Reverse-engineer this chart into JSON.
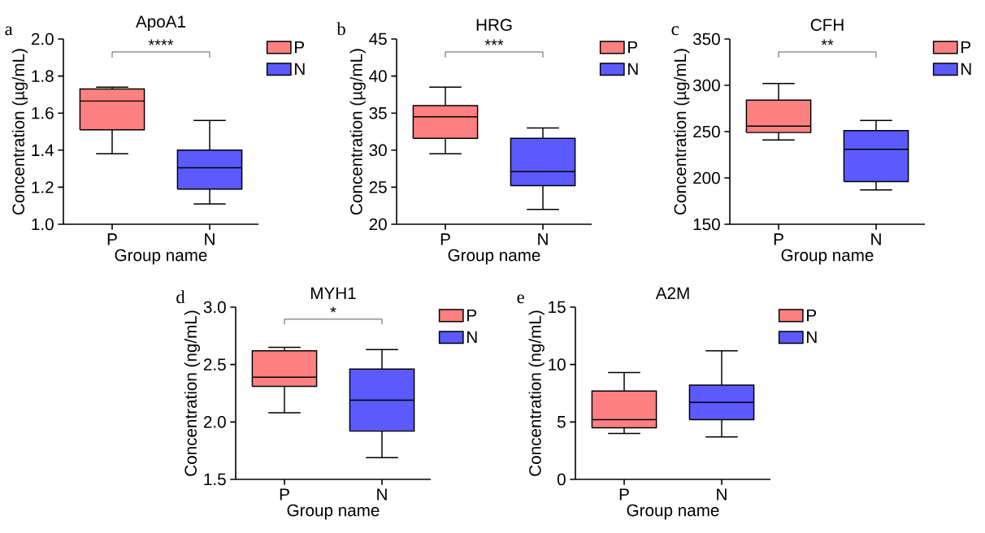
{
  "chart_data": [
    {
      "type": "box",
      "title": "ApoA1",
      "xlabel": "Group name",
      "ylabel": "Concentration (µg/mL)",
      "categories": [
        "P",
        "N"
      ],
      "ylim": [
        1.0,
        2.0
      ],
      "yticks": [
        {
          "value": 1,
          "label": "1.0"
        },
        1.2,
        1.4,
        1.6,
        1.8,
        {
          "value": 2,
          "label": "2.0"
        }
      ],
      "legend": "right",
      "annotations": [
        "a",
        "****"
      ],
      "series": [
        {
          "name": "P",
          "color": "#ff8080",
          "boxes": [
            {
              "low": 1.38,
              "q1": 1.51,
              "median": 1.665,
              "q3": 1.73,
              "high": 1.74
            },
            null
          ]
        },
        {
          "name": "N",
          "color": "#5a5aff",
          "boxes": [
            null,
            {
              "low": 1.11,
              "q1": 1.19,
              "median": 1.305,
              "q3": 1.4,
              "high": 1.56
            }
          ]
        }
      ]
    },
    {
      "type": "box",
      "title": "HRG",
      "xlabel": "Group name",
      "ylabel": "Concentration (µg/mL)",
      "categories": [
        "P",
        "N"
      ],
      "ylim": [
        20,
        45
      ],
      "yticks": [
        20,
        25,
        30,
        35,
        40,
        45
      ],
      "legend": "right",
      "annotations": [
        "b",
        "***"
      ],
      "series": [
        {
          "name": "P",
          "color": "#ff8080",
          "boxes": [
            {
              "low": 29.5,
              "q1": 31.6,
              "median": 34.5,
              "q3": 36,
              "high": 38.5
            },
            null
          ]
        },
        {
          "name": "N",
          "color": "#5a5aff",
          "boxes": [
            null,
            {
              "low": 22,
              "q1": 25.2,
              "median": 27.1,
              "q3": 31.6,
              "high": 33
            }
          ]
        }
      ]
    },
    {
      "type": "box",
      "title": "CFH",
      "xlabel": "Group name",
      "ylabel": "Concentration (µg/mL)",
      "categories": [
        "P",
        "N"
      ],
      "ylim": [
        150,
        350
      ],
      "yticks": [
        150,
        200,
        250,
        300,
        350
      ],
      "legend": "right",
      "annotations": [
        "c",
        "**"
      ],
      "series": [
        {
          "name": "P",
          "color": "#ff8080",
          "boxes": [
            {
              "low": 241,
              "q1": 249,
              "median": 256,
              "q3": 284,
              "high": 302
            },
            null
          ]
        },
        {
          "name": "N",
          "color": "#5a5aff",
          "boxes": [
            null,
            {
              "low": 187,
              "q1": 196,
              "median": 231,
              "q3": 251,
              "high": 262
            }
          ]
        }
      ]
    },
    {
      "type": "box",
      "title": "MYH1",
      "xlabel": "Group name",
      "ylabel": "Concentration (ng/mL)",
      "categories": [
        "P",
        "N"
      ],
      "ylim": [
        1.5,
        3.0
      ],
      "yticks": [
        1.5,
        {
          "value": 2,
          "label": "2.0"
        },
        2.5,
        {
          "value": 3,
          "label": "3.0"
        }
      ],
      "legend": "right",
      "annotations": [
        "d",
        "*"
      ],
      "series": [
        {
          "name": "P",
          "color": "#ff8080",
          "boxes": [
            {
              "low": 2.08,
              "q1": 2.31,
              "median": 2.39,
              "q3": 2.62,
              "high": 2.65
            },
            null
          ]
        },
        {
          "name": "N",
          "color": "#5a5aff",
          "boxes": [
            null,
            {
              "low": 1.69,
              "q1": 1.92,
              "median": 2.19,
              "q3": 2.46,
              "high": 2.63
            }
          ]
        }
      ]
    },
    {
      "type": "box",
      "title": "A2M",
      "xlabel": "Group name",
      "ylabel": "Concentration (ng/mL)",
      "categories": [
        "P",
        "N"
      ],
      "ylim": [
        0,
        15
      ],
      "yticks": [
        0,
        5,
        10,
        15
      ],
      "legend": "right",
      "annotations": [
        "e"
      ],
      "series": [
        {
          "name": "P",
          "color": "#ff8080",
          "boxes": [
            {
              "low": 4.0,
              "q1": 4.5,
              "median": 5.2,
              "q3": 7.7,
              "high": 9.3
            },
            null
          ]
        },
        {
          "name": "N",
          "color": "#5a5aff",
          "boxes": [
            null,
            {
              "low": 3.7,
              "q1": 5.2,
              "median": 6.7,
              "q3": 8.2,
              "high": 11.2
            }
          ]
        }
      ]
    }
  ]
}
